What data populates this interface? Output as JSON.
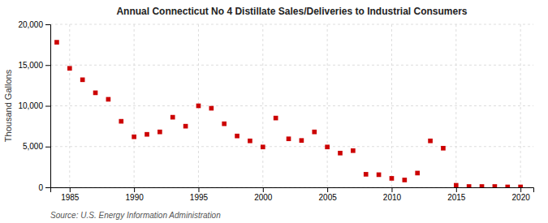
{
  "chart_data": {
    "type": "scatter",
    "title": "Annual Connecticut No 4 Distillate Sales/Deliveries to Industrial Consumers",
    "y_label": "Thousand Gallons",
    "annotations": [
      "Source: U.S. Energy Information Administration"
    ],
    "x": [
      1984,
      1985,
      1986,
      1987,
      1988,
      1989,
      1990,
      1991,
      1992,
      1993,
      1994,
      1995,
      1996,
      1997,
      1998,
      1999,
      2000,
      2001,
      2002,
      2003,
      2004,
      2005,
      2006,
      2007,
      2008,
      2009,
      2010,
      2011,
      2012,
      2013,
      2014,
      2015,
      2016,
      2017,
      2018,
      2019,
      2020
    ],
    "values": [
      17800,
      14600,
      13200,
      11600,
      10800,
      8100,
      6200,
      6500,
      6800,
      8600,
      7500,
      10000,
      9700,
      7800,
      6300,
      5700,
      4950,
      8500,
      5950,
      5750,
      6800,
      4950,
      4200,
      4500,
      1600,
      1550,
      1100,
      900,
      1750,
      5700,
      4800,
      250,
      100,
      100,
      100,
      50,
      50
    ],
    "color": "#cc0000",
    "marker": "square",
    "xlim": [
      1983.5,
      2021
    ],
    "xticks": [
      1985,
      1990,
      1995,
      2000,
      2005,
      2010,
      2015,
      2020
    ],
    "ylim": [
      0,
      20000
    ],
    "yticks": [
      0,
      {
        "value": 5000,
        "label": "5,000"
      },
      {
        "value": 10000,
        "label": "10,000"
      },
      {
        "value": 15000,
        "label": "15,000"
      },
      {
        "value": 20000,
        "label": "20,000"
      }
    ],
    "grid": true
  }
}
